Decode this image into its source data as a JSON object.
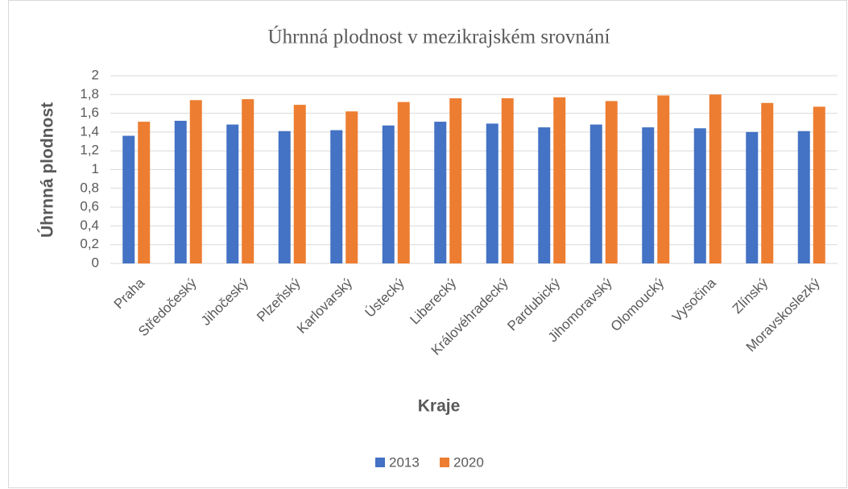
{
  "chart_data": {
    "type": "bar",
    "title": "Úhrnná plodnost v mezikrajském srovnání",
    "x_label": "Kraje",
    "y_label": "Úhrnná plodnost",
    "categories": [
      "Praha",
      "Středočeský",
      "Jihočeský",
      "Plzeňský",
      "Karlovarský",
      "Ústecký",
      "Liberecký",
      "Královéhradecký",
      "Pardubický",
      "Jihomoravský",
      "Olomoucký",
      "Vysočina",
      "Zlínský",
      "Moravskoslezký"
    ],
    "series": [
      {
        "name": "2013",
        "color": "#4472c4",
        "values": [
          1.36,
          1.52,
          1.48,
          1.41,
          1.42,
          1.47,
          1.51,
          1.49,
          1.45,
          1.48,
          1.45,
          1.44,
          1.4,
          1.41
        ]
      },
      {
        "name": "2020",
        "color": "#ed7d31",
        "values": [
          1.51,
          1.74,
          1.75,
          1.69,
          1.62,
          1.72,
          1.76,
          1.76,
          1.77,
          1.73,
          1.79,
          1.8,
          1.71,
          1.67
        ]
      }
    ],
    "ylim": [
      0,
      2
    ],
    "yticks": [
      0,
      {
        "value": 0.2,
        "label": "0,2"
      },
      {
        "value": 0.4,
        "label": "0,4"
      },
      {
        "value": 0.6,
        "label": "0,6"
      },
      {
        "value": 0.8,
        "label": "0,8"
      },
      1,
      {
        "value": 1.2,
        "label": "1,2"
      },
      {
        "value": 1.4,
        "label": "1,4"
      },
      {
        "value": 1.6,
        "label": "1,6"
      },
      {
        "value": 1.8,
        "label": "1,8"
      },
      2
    ],
    "grid": true,
    "legend": "bottom"
  }
}
